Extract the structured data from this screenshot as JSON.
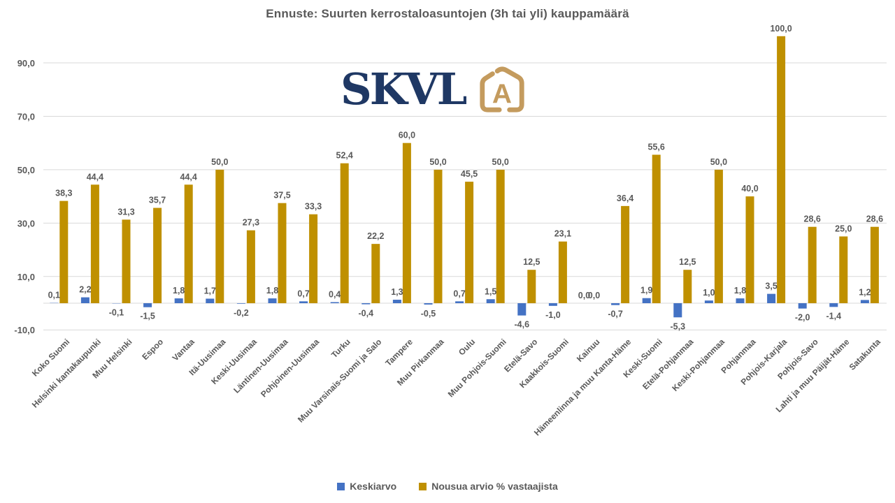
{
  "title": "Ennuste: Suurten kerrostaloasuntojen (3h tai yli) kauppamäärä",
  "logo": {
    "text": "SKVL",
    "badge_letter": "A",
    "navy": "#1F3864",
    "gold": "#C49B5E"
  },
  "colors": {
    "series_blue": "#4472C4",
    "series_gold": "#BF9000",
    "label_text": "#595959",
    "gridline": "#D9D9D9"
  },
  "y_axis": {
    "ticks": [
      "90,0",
      "70,0",
      "50,0",
      "30,0",
      "10,0",
      "-10,0"
    ],
    "tick_values": [
      90,
      70,
      50,
      30,
      10,
      -10
    ],
    "min": -10,
    "max": 100
  },
  "legend": [
    {
      "label": "Keskiarvo",
      "color": "#4472C4"
    },
    {
      "label": "Nousua arvio % vastaajista",
      "color": "#BF9000"
    }
  ],
  "chart_data": {
    "type": "bar",
    "title": "Ennuste: Suurten kerrostaloasuntojen (3h tai yli) kauppamäärä",
    "categories": [
      "Koko Suomi",
      "Helsinki kantakaupunki",
      "Muu Helsinki",
      "Espoo",
      "Vantaa",
      "Itä-Uusimaa",
      "Keski-Uusimaa",
      "Läntinen-Uusimaa",
      "Pohjoinen-Uusimaa",
      "Turku",
      "Muu Varsinais-Suomi ja Salo",
      "Tampere",
      "Muu Pirkanmaa",
      "Oulu",
      "Muu Pohjois-Suomi",
      "Etelä-Savo",
      "Kaakkois-Suomi",
      "Kainuu",
      "Hämeenlinna ja muu Kanta-Häme",
      "Keski-Suomi",
      "Etelä-Pohjanmaa",
      "Keski-Pohjanmaa",
      "Pohjanmaa",
      "Pohjois-Karjala",
      "Pohjois-Savo",
      "Lahti ja muu Päijät-Häme",
      "Satakunta"
    ],
    "series": [
      {
        "name": "Keskiarvo",
        "color": "#4472C4",
        "values": [
          0.1,
          2.2,
          -0.1,
          -1.5,
          1.8,
          1.7,
          -0.2,
          1.8,
          0.7,
          0.4,
          -0.4,
          1.3,
          -0.5,
          0.7,
          1.5,
          -4.6,
          -1.0,
          0.0,
          -0.7,
          1.9,
          -5.3,
          1.0,
          1.8,
          3.5,
          -2.0,
          -1.4,
          1.2
        ]
      },
      {
        "name": "Nousua arvio % vastaajista",
        "color": "#BF9000",
        "values": [
          38.3,
          44.4,
          31.3,
          35.7,
          44.4,
          50.0,
          27.3,
          37.5,
          33.3,
          52.4,
          22.2,
          60.0,
          50.0,
          45.5,
          50.0,
          12.5,
          23.1,
          0.0,
          36.4,
          55.6,
          12.5,
          50.0,
          40.0,
          100.0,
          28.6,
          25.0,
          28.6
        ]
      }
    ],
    "ylim": [
      -10,
      100
    ],
    "grid": true,
    "legend_position": "bottom",
    "decimal_separator": ",",
    "data_labels": true,
    "x_label_rotation_deg": 45
  }
}
